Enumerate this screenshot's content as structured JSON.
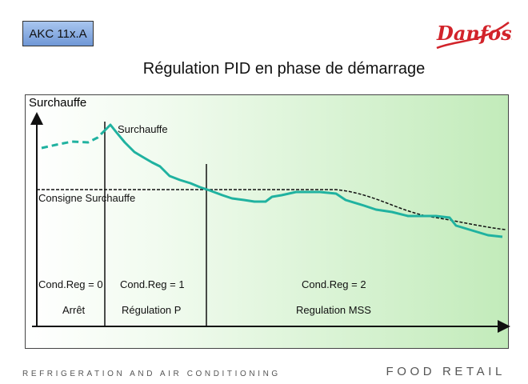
{
  "header": {
    "tag": "AKC 11x.A",
    "title": "Régulation PID en phase de démarrage",
    "logo_text": "Danfoss",
    "logo_color": "#d2232a"
  },
  "diagram": {
    "panel_title": "Surchauffe",
    "curve_label": "Surchauffe",
    "setpoint_label": "Consigne Surchauffe",
    "phases": [
      {
        "condreg": "Cond.Reg = 0",
        "mode": "Arrêt"
      },
      {
        "condreg": "Cond.Reg = 1",
        "mode": "Régulation P"
      },
      {
        "condreg": "Cond.Reg = 2",
        "mode": "Regulation MSS"
      }
    ],
    "curve_color": "#20b2a0"
  },
  "footer": {
    "left": "REFRIGERATION AND AIR CONDITIONING",
    "right": "FOOD RETAIL"
  }
}
